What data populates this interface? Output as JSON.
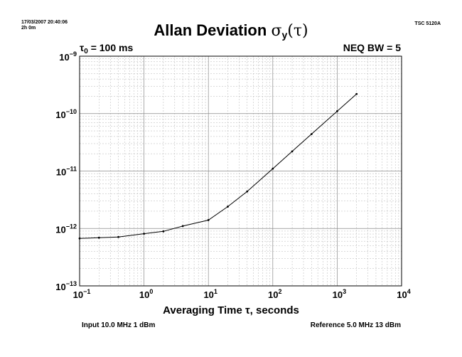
{
  "header": {
    "timestamp": "17/03/2007 20:40:06",
    "duration": "2h 0m",
    "instrument": "TSC 5120A",
    "title_prefix": "Allan Deviation ",
    "title_sigma": "σ",
    "title_sub": "y",
    "title_suffix": "(τ)",
    "tau_symbol": "τ",
    "tau_sub": "0",
    "tau_value": " = 100 ms",
    "neq_bw": "NEQ BW = 5"
  },
  "footer": {
    "input": "Input 10.0 MHz 1 dBm",
    "reference": "Reference 5.0 MHz 13 dBm"
  },
  "chart_data": {
    "type": "line",
    "xscale": "log",
    "yscale": "log",
    "xlabel": "Averaging Time τ, seconds",
    "ylabel": "",
    "xlim": [
      0.1,
      10000
    ],
    "ylim": [
      1e-13,
      1e-09
    ],
    "grid": true,
    "x_ticks": [
      {
        "value": 0.1,
        "base": "10",
        "exp": "−1"
      },
      {
        "value": 1,
        "base": "10",
        "exp": "0"
      },
      {
        "value": 10,
        "base": "10",
        "exp": "1"
      },
      {
        "value": 100,
        "base": "10",
        "exp": "2"
      },
      {
        "value": 1000,
        "base": "10",
        "exp": "3"
      },
      {
        "value": 10000,
        "base": "10",
        "exp": "4"
      }
    ],
    "y_ticks": [
      {
        "value": 1e-13,
        "base": "10",
        "exp": "−13"
      },
      {
        "value": 1e-12,
        "base": "10",
        "exp": "−12"
      },
      {
        "value": 1e-11,
        "base": "10",
        "exp": "−11"
      },
      {
        "value": 1e-10,
        "base": "10",
        "exp": "−10"
      },
      {
        "value": 1e-09,
        "base": "10",
        "exp": "−9"
      }
    ],
    "series": [
      {
        "color": "#000000",
        "x": [
          0.1,
          0.2,
          0.4,
          1,
          2,
          4,
          10,
          20,
          40,
          100,
          200,
          400,
          1000,
          2000
        ],
        "y": [
          6.7e-13,
          6.9e-13,
          7.1e-13,
          8.1e-13,
          8.9e-13,
          1.1e-12,
          1.4e-12,
          2.4e-12,
          4.4e-12,
          1.1e-11,
          2.2e-11,
          4.4e-11,
          1.1e-10,
          2.2e-10
        ]
      }
    ]
  }
}
